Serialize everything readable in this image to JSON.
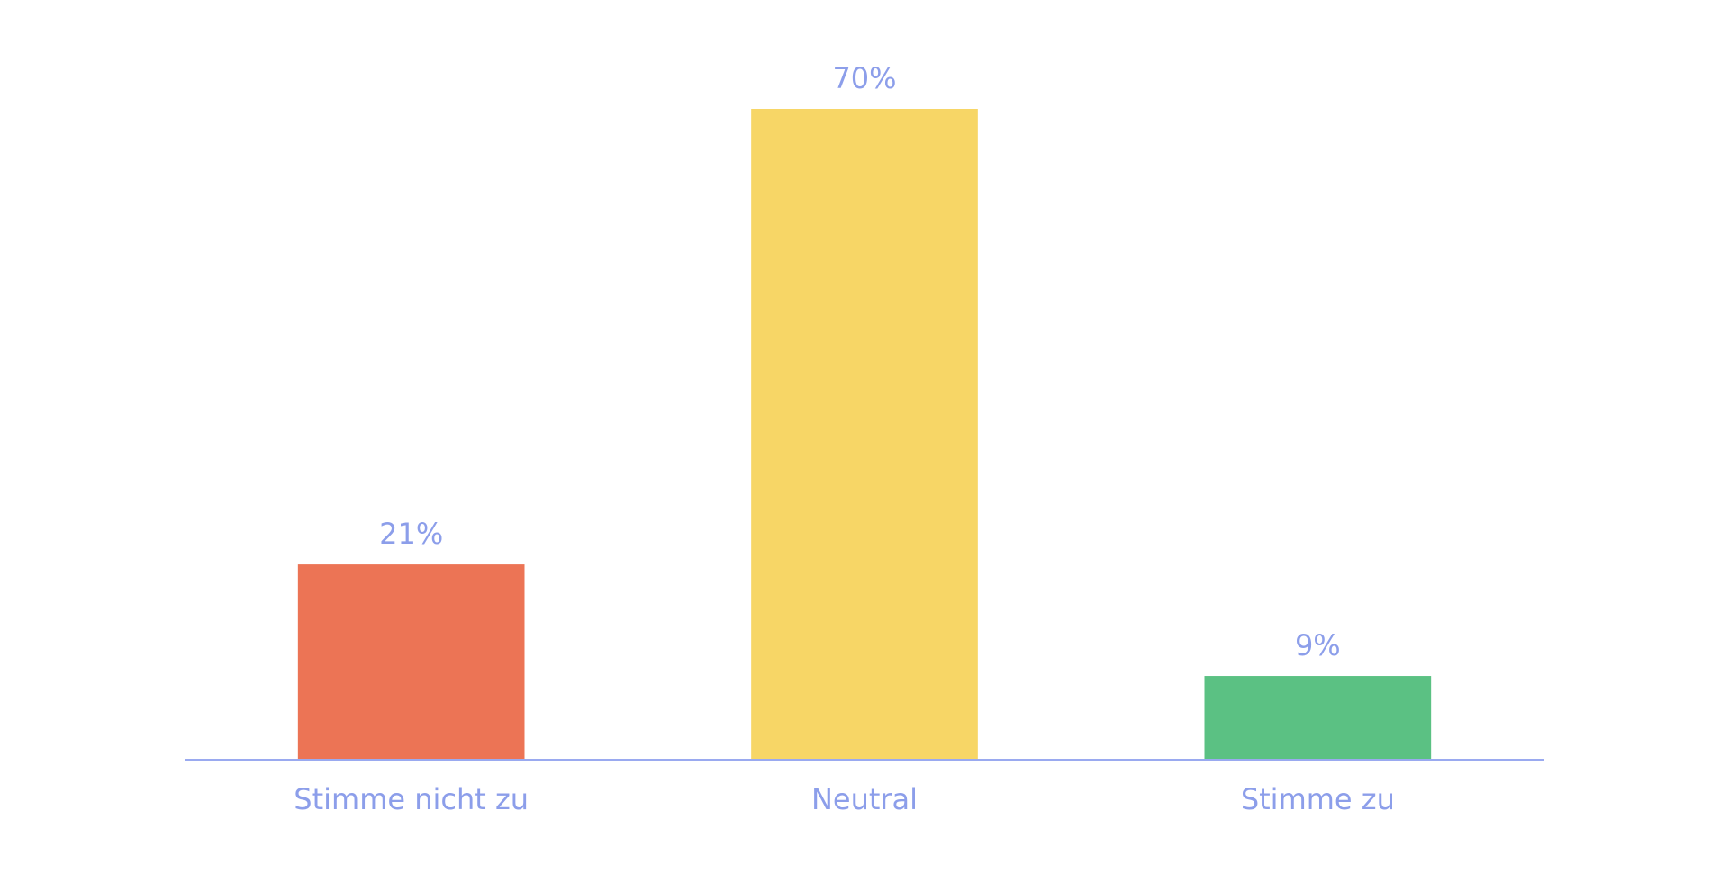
{
  "chart_data": {
    "type": "bar",
    "categories": [
      "Stimme nicht zu",
      "Neutral",
      "Stimme zu"
    ],
    "values": [
      21,
      70,
      9
    ],
    "value_labels": [
      "21%",
      "70%",
      "9%"
    ],
    "colors": [
      "#ec7455",
      "#f7d666",
      "#5bc183"
    ]
  }
}
